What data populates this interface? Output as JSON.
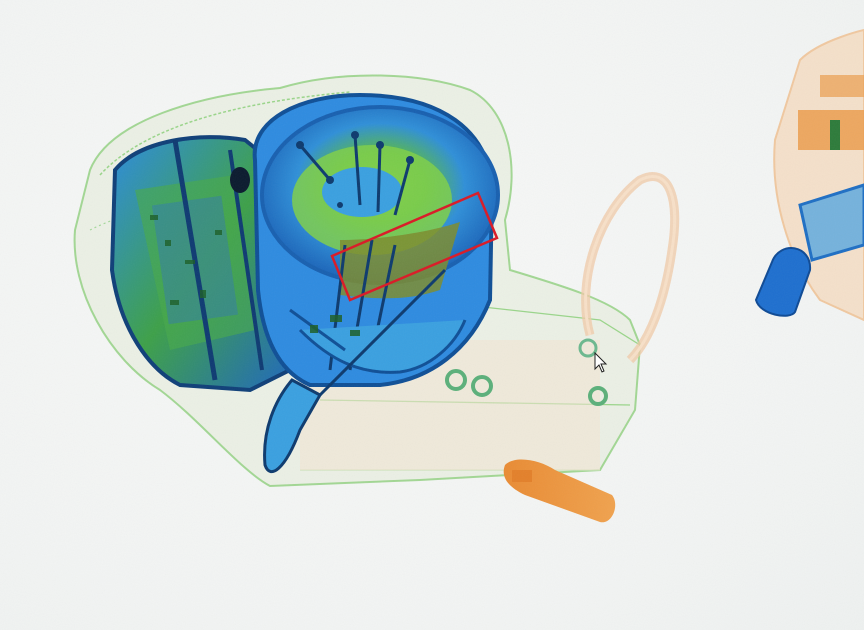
{
  "scan": {
    "palette": {
      "organic": "#e89a4a",
      "mixed": "#6cc24a",
      "metal_dense": "#1f6fc4",
      "metal_light": "#3b9be6",
      "edge_dark": "#0d3a6e",
      "highlight_box": "#d91e2a",
      "background": "#f3f5f4"
    },
    "objects": [
      {
        "name": "backpack-outline",
        "material": "mixed"
      },
      {
        "name": "electronic-device-left",
        "material": "metal"
      },
      {
        "name": "round-container",
        "material": "metal"
      },
      {
        "name": "strap-loop",
        "material": "organic"
      },
      {
        "name": "cylinder-small-orange",
        "material": "organic"
      },
      {
        "name": "right-bag-partial",
        "material": "organic"
      },
      {
        "name": "blue-canister",
        "material": "metal"
      }
    ],
    "highlight": {
      "shape": "rectangle",
      "color_key": "highlight_box",
      "label": ""
    },
    "cursor": {
      "visible": true,
      "type": "arrow"
    }
  }
}
